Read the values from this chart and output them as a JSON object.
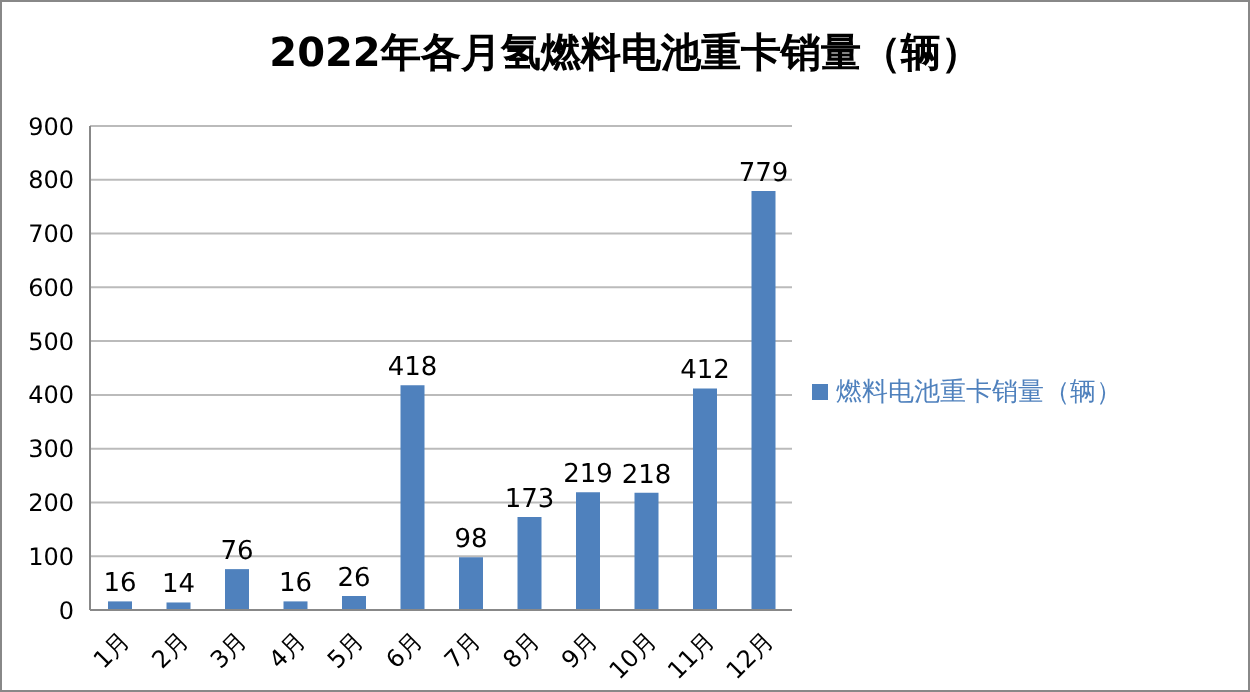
{
  "chart_data": {
    "type": "bar",
    "title": "2022年各月氢燃料电池重卡销量（辆）",
    "categories": [
      "1月",
      "2月",
      "3月",
      "4月",
      "5月",
      "6月",
      "7月",
      "8月",
      "9月",
      "10月",
      "11月",
      "12月"
    ],
    "series": [
      {
        "name": "燃料电池重卡销量（辆）",
        "color": "#4f81bd",
        "values": [
          16,
          14,
          76,
          16,
          26,
          418,
          98,
          173,
          219,
          218,
          412,
          779
        ]
      }
    ],
    "ylim": [
      0,
      900
    ],
    "yticks": [
      0,
      100,
      200,
      300,
      400,
      500,
      600,
      700,
      800,
      900
    ],
    "grid": "y",
    "legend": "right",
    "data_labels": true
  }
}
